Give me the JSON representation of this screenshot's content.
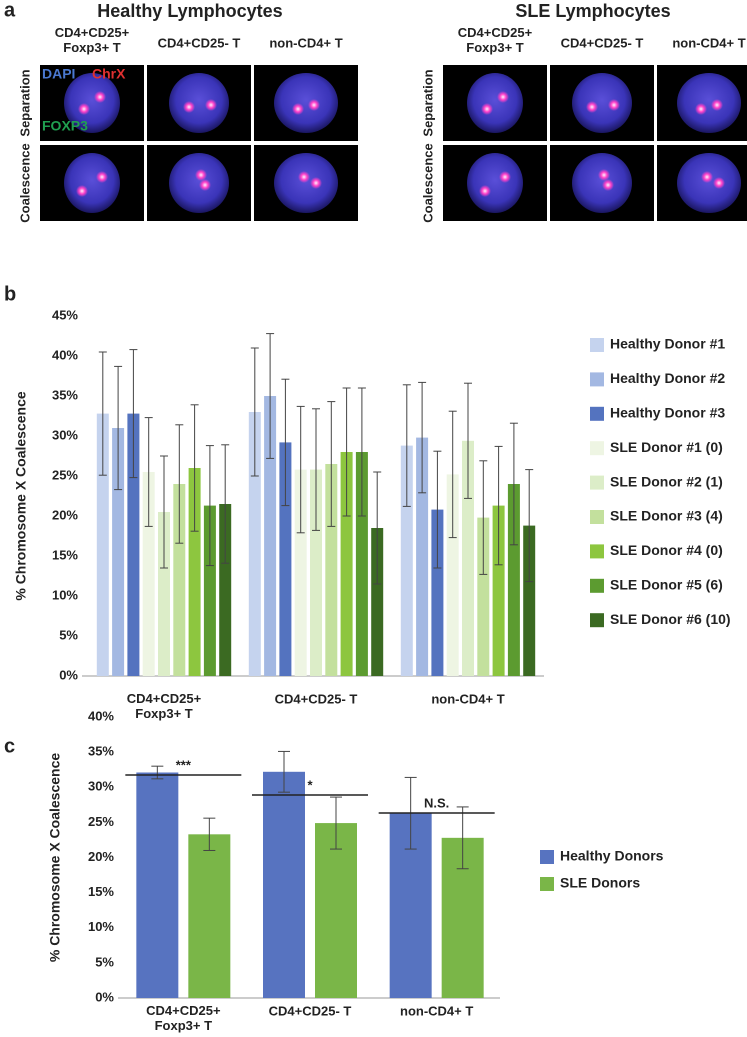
{
  "panel_a": {
    "panel_label": "a",
    "groups": [
      {
        "title": "Healthy Lymphocytes",
        "columns": [
          "CD4+CD25+\nFoxp3+ T",
          "CD4+CD25- T",
          "non-CD4+ T"
        ],
        "rows": [
          "Separation",
          "Coalescence"
        ]
      },
      {
        "title": "SLE Lymphocytes",
        "columns": [
          "CD4+CD25+\nFoxp3+ T",
          "CD4+CD25- T",
          "non-CD4+ T"
        ],
        "rows": [
          "Separation",
          "Coalescence"
        ]
      }
    ],
    "channels": [
      "DAPI",
      "ChrX",
      "FOXP3"
    ]
  },
  "chart_data": [
    {
      "type": "bar",
      "panel_label": "b",
      "y_label": "% Chromosome X Coalescence",
      "categories": [
        "CD4+CD25+\nFoxp3+ T",
        "CD4+CD25- T",
        "non-CD4+ T"
      ],
      "ylim": [
        0,
        45
      ],
      "yticks": [
        {
          "value": 0,
          "label": "0%"
        },
        {
          "value": 5,
          "label": "5%"
        },
        {
          "value": 10,
          "label": "10%"
        },
        {
          "value": 15,
          "label": "15%"
        },
        {
          "value": 20,
          "label": "20%"
        },
        {
          "value": 25,
          "label": "25%"
        },
        {
          "value": 30,
          "label": "30%"
        },
        {
          "value": 35,
          "label": "35%"
        },
        {
          "value": 40,
          "label": "40%"
        },
        {
          "value": 45,
          "label": "45%"
        }
      ],
      "series": [
        {
          "name": "Healthy Donor #1",
          "color": "#c5d3ee",
          "values": [
            32.8,
            33,
            28.8
          ],
          "errors": [
            7.7,
            8,
            7.6
          ]
        },
        {
          "name": "Healthy Donor #2",
          "color": "#a3b8e2",
          "values": [
            31,
            35,
            29.8
          ],
          "errors": [
            7.7,
            7.8,
            6.9
          ]
        },
        {
          "name": "Healthy Donor #3",
          "color": "#5473bf",
          "values": [
            32.8,
            29.2,
            20.8
          ],
          "errors": [
            8,
            7.9,
            7.3
          ]
        },
        {
          "name": "SLE Donor #1 (0)",
          "color": "#eef5e3",
          "values": [
            25.5,
            25.8,
            25.2
          ],
          "errors": [
            6.8,
            7.9,
            7.9
          ]
        },
        {
          "name": "SLE Donor #2 (1)",
          "color": "#dcedc8",
          "values": [
            20.5,
            25.8,
            29.4
          ],
          "errors": [
            7,
            7.6,
            7.2
          ]
        },
        {
          "name": "SLE Donor #3 (4)",
          "color": "#c3e09d",
          "values": [
            24,
            26.5,
            19.8
          ],
          "errors": [
            7.4,
            7.8,
            7.1
          ]
        },
        {
          "name": "SLE Donor #4 (0)",
          "color": "#8dc63f",
          "values": [
            26,
            28,
            21.3
          ],
          "errors": [
            7.9,
            8,
            7.4
          ]
        },
        {
          "name": "SLE Donor #5 (6)",
          "color": "#5c9b30",
          "values": [
            21.3,
            28,
            24
          ],
          "errors": [
            7.5,
            8,
            7.6
          ]
        },
        {
          "name": "SLE Donor #6 (10)",
          "color": "#3b6a22",
          "values": [
            21.5,
            18.5,
            18.8
          ],
          "errors": [
            7.4,
            7,
            7
          ]
        }
      ]
    },
    {
      "type": "bar",
      "panel_label": "c",
      "y_label": "% Chromosome X Coalescence",
      "categories": [
        "CD4+CD25+\nFoxp3+ T",
        "CD4+CD25- T",
        "non-CD4+ T"
      ],
      "ylim": [
        0,
        40
      ],
      "yticks": [
        {
          "value": 0,
          "label": "0%"
        },
        {
          "value": 5,
          "label": "5%"
        },
        {
          "value": 10,
          "label": "10%"
        },
        {
          "value": 15,
          "label": "15%"
        },
        {
          "value": 20,
          "label": "20%"
        },
        {
          "value": 25,
          "label": "25%"
        },
        {
          "value": 30,
          "label": "30%"
        },
        {
          "value": 35,
          "label": "35%"
        },
        {
          "value": 40,
          "label": "40%"
        }
      ],
      "annotations": [
        "***",
        "*",
        "N.S."
      ],
      "series": [
        {
          "name": "Healthy Donors",
          "color": "#5773c0",
          "values": [
            32.1,
            32.2,
            26.3
          ],
          "errors": [
            0.9,
            2.9,
            5.1
          ]
        },
        {
          "name": "SLE Donors",
          "color": "#7ab648",
          "values": [
            23.3,
            24.9,
            22.8
          ],
          "errors": [
            2.3,
            3.7,
            4.4
          ]
        }
      ]
    }
  ]
}
